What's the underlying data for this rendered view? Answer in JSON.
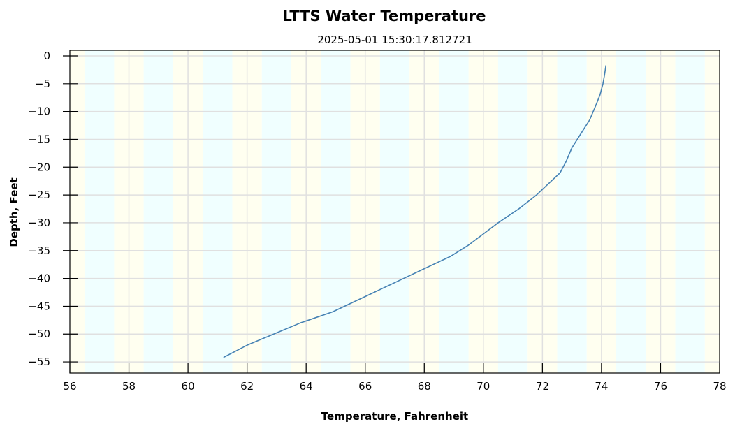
{
  "chart_data": {
    "type": "line",
    "title": "LTTS Water Temperature",
    "subtitle": "2025-05-01 15:30:17.812721",
    "xlabel": "Temperature, Fahrenheit",
    "ylabel": "Depth, Feet",
    "xlim": [
      56,
      78
    ],
    "ylim": [
      -57,
      1
    ],
    "x_ticks": [
      56,
      58,
      60,
      62,
      64,
      66,
      68,
      70,
      72,
      74,
      76,
      78
    ],
    "x_tick_labels": [
      "56",
      "58",
      "60",
      "62",
      "64",
      "66",
      "68",
      "70",
      "72",
      "74",
      "76",
      "78"
    ],
    "y_ticks": [
      0,
      -5,
      -10,
      -15,
      -20,
      -25,
      -30,
      -35,
      -40,
      -45,
      -50,
      -55
    ],
    "y_tick_labels": [
      "0",
      "−5",
      "−10",
      "−15",
      "−20",
      "−25",
      "−30",
      "−35",
      "−40",
      "−45",
      "−50",
      "−55"
    ],
    "grid": true,
    "line_color": "#4682b4",
    "band_colors": [
      "#fffff0",
      "#f0ffff"
    ],
    "band_edges": [
      56,
      56.5,
      57.5,
      58.5,
      59.5,
      60.5,
      61.5,
      62.5,
      63.5,
      64.5,
      65.5,
      66.5,
      67.5,
      68.5,
      69.5,
      70.5,
      71.5,
      72.5,
      73.5,
      74.5,
      75.5,
      76.5,
      77.5,
      78
    ],
    "series": [
      {
        "x": [
          61.2,
          62.0,
          62.9,
          63.8,
          64.9,
          65.9,
          66.9,
          67.9,
          68.9,
          69.5,
          70.0,
          70.5,
          71.2,
          71.8,
          72.3,
          72.6,
          72.8,
          73.0,
          73.3,
          73.6,
          73.8,
          73.95,
          74.05,
          74.1,
          74.15
        ],
        "y": [
          -54.2,
          -52,
          -50,
          -48,
          -46,
          -43.5,
          -41,
          -38.5,
          -36,
          -34,
          -32,
          -30,
          -27.5,
          -25,
          -22.5,
          -21,
          -19,
          -16.5,
          -14,
          -11.5,
          -9,
          -7,
          -5,
          -3.5,
          -1.7
        ]
      }
    ]
  }
}
